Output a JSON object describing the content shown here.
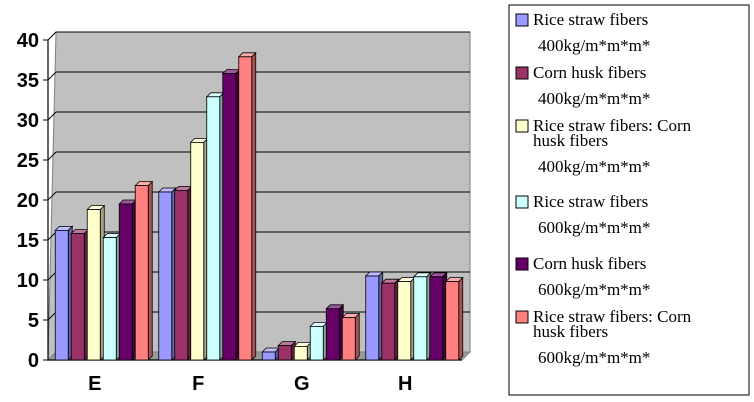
{
  "chart_data": {
    "type": "bar",
    "title": "",
    "xlabel": "",
    "ylabel": "",
    "categories": [
      "E",
      "F",
      "G",
      "H"
    ],
    "ylim": [
      0,
      40
    ],
    "yticks": [
      0,
      5,
      10,
      15,
      20,
      25,
      30,
      35,
      40
    ],
    "grid": true,
    "legend_position": "right",
    "series": [
      {
        "name": "Rice straw fibers",
        "name_line2": "400kg/m*m*m*",
        "color": "#9999ff",
        "values": [
          16.2,
          21.0,
          1.0,
          10.5
        ]
      },
      {
        "name": "Corn husk fibers",
        "name_line2": "400kg/m*m*m*",
        "color": "#993366",
        "values": [
          15.8,
          21.2,
          1.8,
          9.6
        ]
      },
      {
        "name": "Rice straw fibers: Corn husk fibers",
        "name_line2": "400kg/m*m*m*",
        "color": "#ffffcc",
        "values": [
          18.8,
          27.2,
          1.7,
          9.8
        ]
      },
      {
        "name": "Rice straw fibers",
        "name_line2": "600kg/m*m*m*",
        "color": "#ccffff",
        "values": [
          15.3,
          32.9,
          4.2,
          10.4
        ]
      },
      {
        "name": "Corn husk fibers",
        "name_line2": "600kg/m*m*m*",
        "color": "#660066",
        "values": [
          19.5,
          35.8,
          6.4,
          10.4
        ]
      },
      {
        "name": "Rice straw fibers: Corn husk fibers",
        "name_line2": "600kg/m*m*m*",
        "color": "#ff8080",
        "values": [
          21.8,
          37.9,
          5.3,
          9.8
        ]
      }
    ]
  }
}
